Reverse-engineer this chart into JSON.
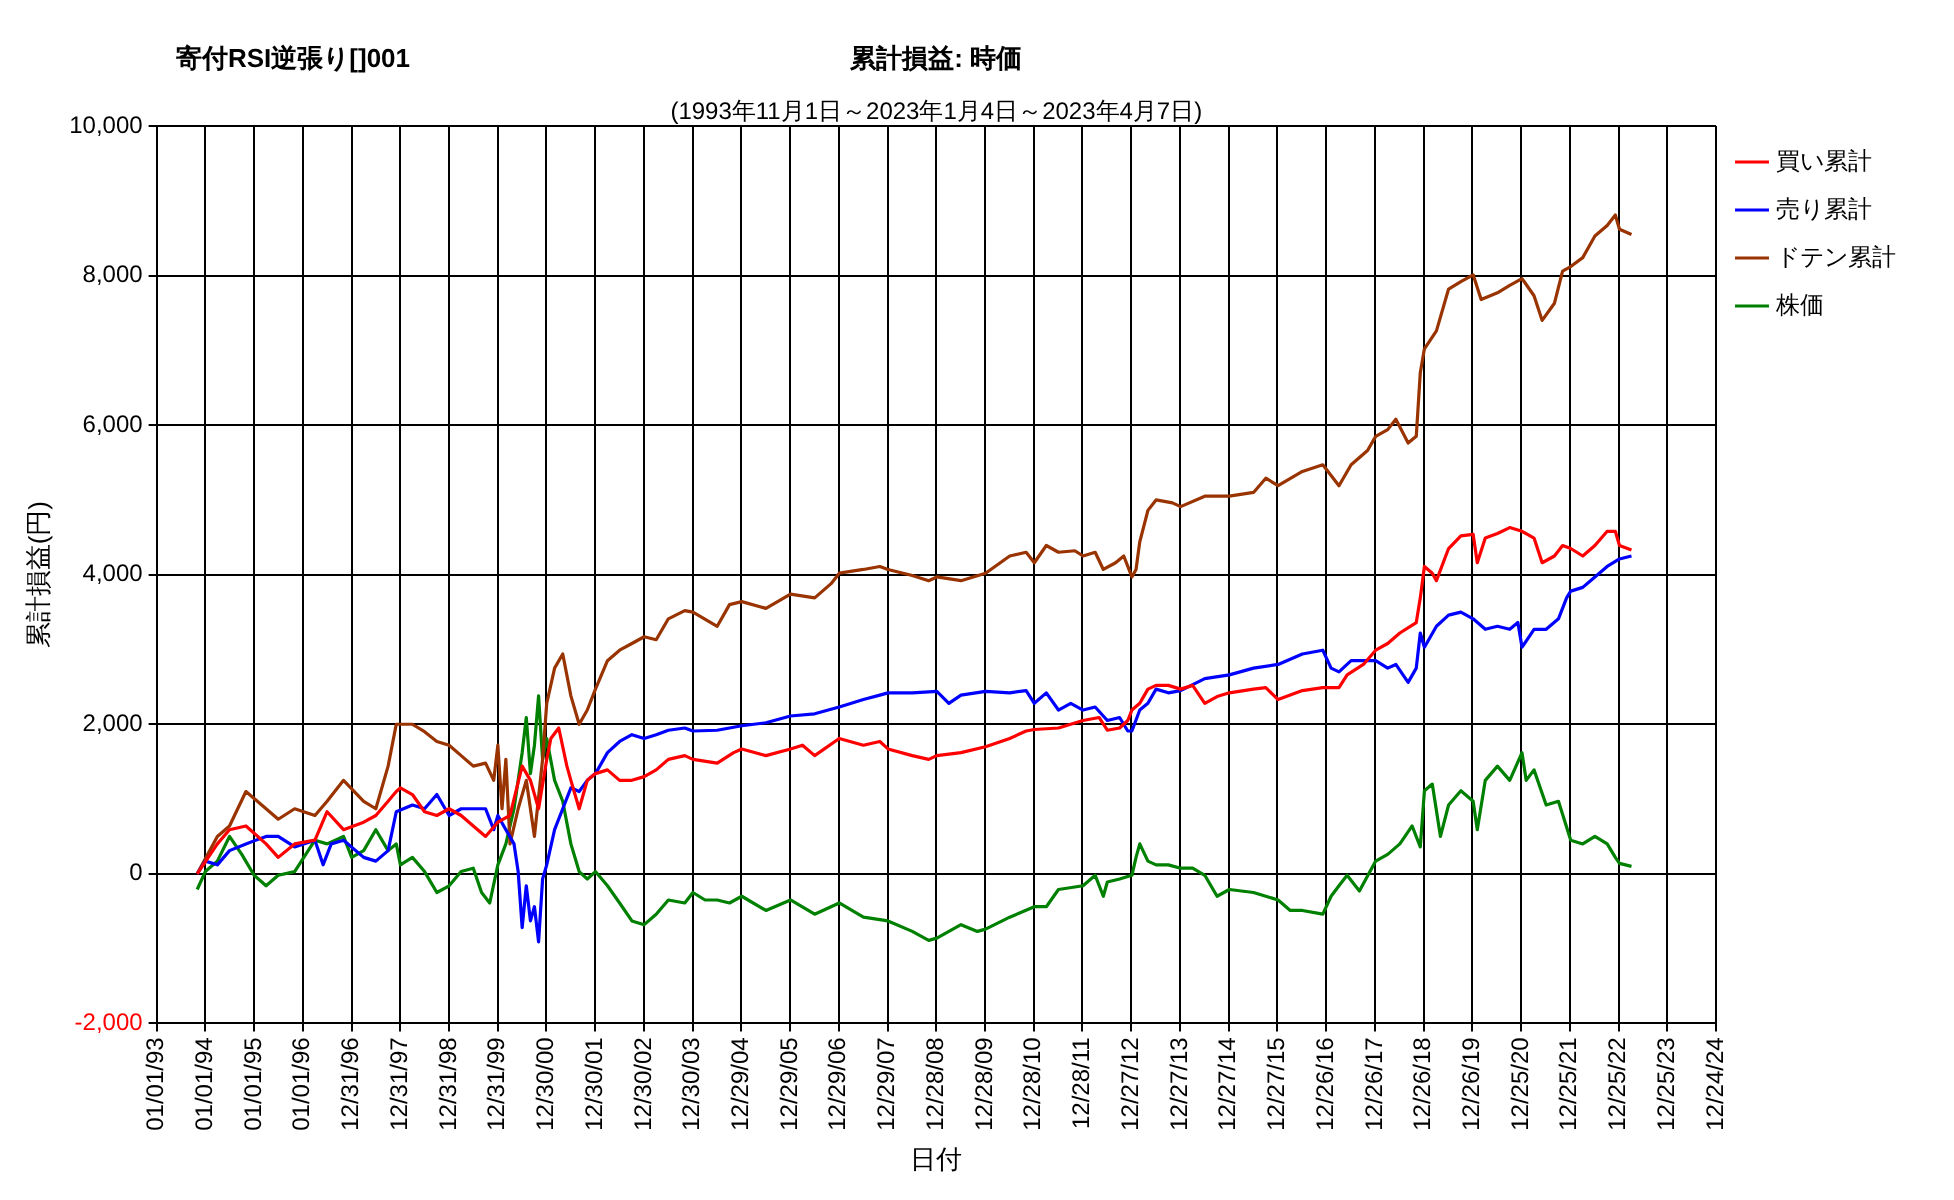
{
  "chart_data": {
    "type": "line",
    "title": "累計損益: 時価",
    "subtitle": "(1993年11月1日～2023年1月4日～2023年4月7日)",
    "annotations": [
      "寄付RSI逆張り[]001"
    ],
    "xlabel": "日付",
    "ylabel": "累計損益(円)",
    "xlim": [
      "1993-01-01",
      "2024-12-24"
    ],
    "xticks": [
      {
        "value": "1993-01-01",
        "label": "01/01/93"
      },
      {
        "value": "1994-01-01",
        "label": "01/01/94"
      },
      {
        "value": "1995-01-01",
        "label": "01/01/95"
      },
      {
        "value": "1996-01-01",
        "label": "01/01/96"
      },
      {
        "value": "1996-12-31",
        "label": "12/31/96"
      },
      {
        "value": "1997-12-31",
        "label": "12/31/97"
      },
      {
        "value": "1998-12-31",
        "label": "12/31/98"
      },
      {
        "value": "1999-12-31",
        "label": "12/31/99"
      },
      {
        "value": "2000-12-30",
        "label": "12/30/00"
      },
      {
        "value": "2001-12-30",
        "label": "12/30/01"
      },
      {
        "value": "2002-12-30",
        "label": "12/30/02"
      },
      {
        "value": "2003-12-30",
        "label": "12/30/03"
      },
      {
        "value": "2004-12-29",
        "label": "12/29/04"
      },
      {
        "value": "2005-12-29",
        "label": "12/29/05"
      },
      {
        "value": "2006-12-29",
        "label": "12/29/06"
      },
      {
        "value": "2007-12-29",
        "label": "12/29/07"
      },
      {
        "value": "2008-12-28",
        "label": "12/28/08"
      },
      {
        "value": "2009-12-28",
        "label": "12/28/09"
      },
      {
        "value": "2010-12-28",
        "label": "12/28/10"
      },
      {
        "value": "2011-12-28",
        "label": "12/28/11"
      },
      {
        "value": "2012-12-27",
        "label": "12/27/12"
      },
      {
        "value": "2013-12-27",
        "label": "12/27/13"
      },
      {
        "value": "2014-12-27",
        "label": "12/27/14"
      },
      {
        "value": "2015-12-27",
        "label": "12/27/15"
      },
      {
        "value": "2016-12-26",
        "label": "12/26/16"
      },
      {
        "value": "2017-12-26",
        "label": "12/26/17"
      },
      {
        "value": "2018-12-26",
        "label": "12/26/18"
      },
      {
        "value": "2019-12-26",
        "label": "12/26/19"
      },
      {
        "value": "2020-12-25",
        "label": "12/25/20"
      },
      {
        "value": "2021-12-25",
        "label": "12/25/21"
      },
      {
        "value": "2022-12-25",
        "label": "12/25/22"
      },
      {
        "value": "2023-12-25",
        "label": "12/25/23"
      },
      {
        "value": "2024-12-24",
        "label": "12/24/24"
      }
    ],
    "ylim": [
      -2000,
      10000
    ],
    "yticks": [
      {
        "value": -2000,
        "label": "-2,000"
      },
      0,
      {
        "value": 2000,
        "label": "2,000"
      },
      {
        "value": 4000,
        "label": "4,000"
      },
      {
        "value": 6000,
        "label": "6,000"
      },
      {
        "value": 8000,
        "label": "8,000"
      },
      {
        "value": 10000,
        "label": "10,000"
      }
    ],
    "grid": true,
    "legend": "right",
    "series": [
      {
        "name": "買い累計",
        "color": "#ff0000",
        "x": [
          "1993-11",
          "1994-04",
          "1994-07",
          "1994-11",
          "1995-04",
          "1995-07",
          "1995-11",
          "1996-04",
          "1996-07",
          "1996-11",
          "1997-04",
          "1997-07",
          "1997-10",
          "1997-12",
          "1998-01",
          "1998-04",
          "1998-07",
          "1998-10",
          "1999-01",
          "1999-04",
          "1999-07",
          "1999-10",
          "2000-01",
          "2000-04",
          "2000-07",
          "2000-09",
          "2000-11",
          "2001-01",
          "2001-02",
          "2001-04",
          "2001-06",
          "2001-07",
          "2001-09",
          "2001-11",
          "2002-01",
          "2002-04",
          "2002-07",
          "2002-10",
          "2003-01",
          "2003-04",
          "2003-07",
          "2003-11",
          "2004-01",
          "2004-07",
          "2004-11",
          "2005-01",
          "2005-07",
          "2006-01",
          "2006-04",
          "2006-07",
          "2007-01",
          "2007-07",
          "2007-11",
          "2008-01",
          "2008-07",
          "2008-11",
          "2009-01",
          "2009-07",
          "2010-01",
          "2010-07",
          "2010-11",
          "2011-01",
          "2011-07",
          "2012-01",
          "2012-05",
          "2012-07",
          "2012-10",
          "2012-12",
          "2013-01",
          "2013-03",
          "2013-05",
          "2013-07",
          "2013-10",
          "2014-01",
          "2014-04",
          "2014-07",
          "2014-10",
          "2015-01",
          "2015-07",
          "2015-10",
          "2016-01",
          "2016-07",
          "2016-12",
          "2017-04",
          "2017-06",
          "2017-10",
          "2018-01",
          "2018-04",
          "2018-07",
          "2018-11",
          "2018-12",
          "2019-01",
          "2019-03",
          "2019-04",
          "2019-07",
          "2019-10",
          "2020-01",
          "2020-02",
          "2020-04",
          "2020-07",
          "2020-10",
          "2021-01",
          "2021-04",
          "2021-06",
          "2021-09",
          "2021-11",
          "2022-01",
          "2022-04",
          "2022-07",
          "2022-10",
          "2022-12",
          "2023-01",
          "2023-04"
        ],
        "values": [
          0,
          400,
          590,
          640,
          400,
          220,
          400,
          450,
          830,
          590,
          690,
          780,
          970,
          1100,
          1150,
          1060,
          830,
          780,
          870,
          780,
          640,
          500,
          690,
          780,
          1440,
          1250,
          870,
          1530,
          1810,
          1950,
          1440,
          1250,
          870,
          1250,
          1340,
          1390,
          1250,
          1250,
          1300,
          1390,
          1530,
          1580,
          1530,
          1480,
          1620,
          1670,
          1580,
          1670,
          1720,
          1580,
          1810,
          1720,
          1770,
          1670,
          1580,
          1530,
          1580,
          1620,
          1700,
          1810,
          1910,
          1930,
          1950,
          2050,
          2090,
          1920,
          1950,
          2050,
          2190,
          2280,
          2470,
          2520,
          2520,
          2470,
          2520,
          2280,
          2370,
          2420,
          2470,
          2490,
          2330,
          2450,
          2490,
          2490,
          2660,
          2800,
          2990,
          3080,
          3220,
          3360,
          3690,
          4110,
          4020,
          3920,
          4350,
          4520,
          4540,
          4160,
          4490,
          4550,
          4630,
          4580,
          4490,
          4160,
          4250,
          4390,
          4350,
          4250,
          4390,
          4580,
          4580,
          4390,
          4330
        ]
      },
      {
        "name": "売り累計",
        "color": "#0000ff",
        "x": [
          "1993-11",
          "1994-01",
          "1994-04",
          "1994-07",
          "1994-11",
          "1995-04",
          "1995-07",
          "1995-11",
          "1996-04",
          "1996-06",
          "1996-08",
          "1996-11",
          "1997-04",
          "1997-07",
          "1997-10",
          "1997-12",
          "1998-04",
          "1998-07",
          "1998-10",
          "1999-01",
          "1999-04",
          "1999-07",
          "1999-10",
          "1999-12",
          "2000-01",
          "2000-03",
          "2000-05",
          "2000-06",
          "2000-07",
          "2000-08",
          "2000-09",
          "2000-10",
          "2000-11",
          "2000-12",
          "2001-01",
          "2001-03",
          "2001-05",
          "2001-07",
          "2001-09",
          "2001-11",
          "2002-01",
          "2002-04",
          "2002-07",
          "2002-10",
          "2003-01",
          "2003-04",
          "2003-07",
          "2003-11",
          "2004-01",
          "2004-07",
          "2005-01",
          "2005-07",
          "2006-01",
          "2006-07",
          "2007-01",
          "2007-07",
          "2007-11",
          "2008-01",
          "2008-07",
          "2009-01",
          "2009-04",
          "2009-07",
          "2010-01",
          "2010-07",
          "2010-11",
          "2011-01",
          "2011-04",
          "2011-07",
          "2011-10",
          "2012-01",
          "2012-04",
          "2012-07",
          "2012-10",
          "2012-12",
          "2013-01",
          "2013-03",
          "2013-05",
          "2013-07",
          "2013-10",
          "2014-01",
          "2014-07",
          "2015-01",
          "2015-07",
          "2016-01",
          "2016-07",
          "2016-12",
          "2017-02",
          "2017-04",
          "2017-07",
          "2017-10",
          "2018-01",
          "2018-04",
          "2018-06",
          "2018-09",
          "2018-11",
          "2018-12",
          "2019-01",
          "2019-04",
          "2019-07",
          "2019-10",
          "2020-01",
          "2020-04",
          "2020-07",
          "2020-10",
          "2020-12",
          "2021-01",
          "2021-04",
          "2021-07",
          "2021-10",
          "2021-12",
          "2022-01",
          "2022-04",
          "2022-07",
          "2022-10",
          "2023-01",
          "2023-04"
        ],
        "values": [
          0,
          170,
          120,
          310,
          400,
          500,
          500,
          360,
          450,
          120,
          400,
          450,
          220,
          170,
          310,
          830,
          920,
          870,
          1060,
          780,
          870,
          870,
          870,
          590,
          780,
          590,
          400,
          30,
          -720,
          -160,
          -630,
          -440,
          -910,
          -70,
          120,
          590,
          870,
          1150,
          1100,
          1250,
          1340,
          1620,
          1770,
          1860,
          1810,
          1860,
          1920,
          1950,
          1910,
          1920,
          1980,
          2020,
          2110,
          2140,
          2230,
          2330,
          2390,
          2420,
          2420,
          2440,
          2280,
          2390,
          2440,
          2420,
          2450,
          2280,
          2420,
          2190,
          2280,
          2190,
          2230,
          2050,
          2090,
          1910,
          1910,
          2190,
          2280,
          2470,
          2420,
          2450,
          2610,
          2660,
          2750,
          2800,
          2940,
          2990,
          2750,
          2700,
          2850,
          2850,
          2850,
          2750,
          2800,
          2560,
          2750,
          3220,
          3030,
          3310,
          3460,
          3500,
          3410,
          3270,
          3310,
          3270,
          3360,
          3030,
          3270,
          3270,
          3410,
          3690,
          3780,
          3830,
          3970,
          4110,
          4210,
          4250
        ]
      },
      {
        "name": "ドテン累計",
        "color": "#993300",
        "x": [
          "1993-11",
          "1994-04",
          "1994-07",
          "1994-11",
          "1995-04",
          "1995-07",
          "1995-11",
          "1996-04",
          "1996-07",
          "1996-11",
          "1997-04",
          "1997-07",
          "1997-10",
          "1997-12",
          "1998-04",
          "1998-07",
          "1998-10",
          "1999-01",
          "1999-04",
          "1999-07",
          "1999-10",
          "1999-12",
          "2000-01",
          "2000-02",
          "2000-03",
          "2000-04",
          "2000-06",
          "2000-08",
          "2000-10",
          "2000-12",
          "2001-01",
          "2001-03",
          "2001-05",
          "2001-07",
          "2001-09",
          "2001-11",
          "2002-01",
          "2002-04",
          "2002-07",
          "2002-10",
          "2003-01",
          "2003-04",
          "2003-07",
          "2003-11",
          "2004-01",
          "2004-07",
          "2004-10",
          "2005-01",
          "2005-07",
          "2006-01",
          "2006-07",
          "2006-11",
          "2007-01",
          "2007-07",
          "2007-11",
          "2008-01",
          "2008-07",
          "2008-11",
          "2009-01",
          "2009-07",
          "2010-01",
          "2010-07",
          "2010-11",
          "2011-01",
          "2011-04",
          "2011-07",
          "2011-11",
          "2012-01",
          "2012-04",
          "2012-06",
          "2012-09",
          "2012-11",
          "2013-01",
          "2013-02",
          "2013-03",
          "2013-05",
          "2013-07",
          "2013-11",
          "2014-01",
          "2014-07",
          "2015-01",
          "2015-07",
          "2015-10",
          "2016-01",
          "2016-07",
          "2016-12",
          "2017-04",
          "2017-07",
          "2017-11",
          "2018-01",
          "2018-04",
          "2018-06",
          "2018-09",
          "2018-11",
          "2018-12",
          "2019-01",
          "2019-04",
          "2019-07",
          "2019-10",
          "2020-01",
          "2020-03",
          "2020-07",
          "2020-10",
          "2021-01",
          "2021-04",
          "2021-06",
          "2021-09",
          "2021-11",
          "2022-01",
          "2022-04",
          "2022-07",
          "2022-10",
          "2022-12",
          "2023-01",
          "2023-04"
        ],
        "values": [
          0,
          500,
          640,
          1100,
          870,
          730,
          870,
          780,
          970,
          1250,
          970,
          870,
          1440,
          2000,
          2000,
          1900,
          1770,
          1720,
          1580,
          1440,
          1480,
          1250,
          1720,
          870,
          1530,
          400,
          870,
          1250,
          500,
          1530,
          2280,
          2750,
          2940,
          2380,
          2000,
          2190,
          2470,
          2850,
          2990,
          3080,
          3170,
          3130,
          3410,
          3520,
          3500,
          3310,
          3600,
          3640,
          3550,
          3740,
          3690,
          3880,
          4020,
          4070,
          4110,
          4070,
          3990,
          3920,
          3970,
          3920,
          4020,
          4250,
          4300,
          4160,
          4390,
          4300,
          4320,
          4250,
          4300,
          4070,
          4160,
          4250,
          3970,
          4070,
          4440,
          4860,
          5000,
          4960,
          4910,
          5050,
          5050,
          5100,
          5290,
          5190,
          5380,
          5470,
          5190,
          5470,
          5660,
          5850,
          5940,
          6080,
          5760,
          5850,
          6700,
          7020,
          7260,
          7820,
          7920,
          8010,
          7680,
          7770,
          7870,
          7960,
          7730,
          7400,
          7630,
          8060,
          8120,
          8240,
          8530,
          8670,
          8810,
          8620,
          8550
        ]
      },
      {
        "name": "株価",
        "color": "#008000",
        "x": [
          "1993-11",
          "1994-01",
          "1994-04",
          "1994-07",
          "1994-10",
          "1995-01",
          "1995-04",
          "1995-07",
          "1995-11",
          "1996-04",
          "1996-07",
          "1996-11",
          "1997-01",
          "1997-04",
          "1997-07",
          "1997-10",
          "1997-12",
          "1998-01",
          "1998-04",
          "1998-07",
          "1998-10",
          "1999-01",
          "1999-04",
          "1999-07",
          "1999-09",
          "1999-11",
          "2000-01",
          "2000-03",
          "2000-05",
          "2000-07",
          "2000-08",
          "2000-09",
          "2000-10",
          "2000-11",
          "2000-12",
          "2001-01",
          "2001-03",
          "2001-05",
          "2001-07",
          "2001-09",
          "2001-11",
          "2002-01",
          "2002-04",
          "2002-07",
          "2002-10",
          "2003-01",
          "2003-04",
          "2003-07",
          "2003-11",
          "2004-01",
          "2004-04",
          "2004-07",
          "2004-10",
          "2005-01",
          "2005-07",
          "2006-01",
          "2006-07",
          "2007-01",
          "2007-07",
          "2008-01",
          "2008-07",
          "2008-11",
          "2009-01",
          "2009-07",
          "2009-11",
          "2010-01",
          "2010-07",
          "2011-01",
          "2011-04",
          "2011-07",
          "2012-01",
          "2012-04",
          "2012-06",
          "2012-07",
          "2012-10",
          "2013-01",
          "2013-02",
          "2013-03",
          "2013-05",
          "2013-07",
          "2013-10",
          "2014-01",
          "2014-04",
          "2014-07",
          "2014-10",
          "2015-01",
          "2015-07",
          "2015-10",
          "2016-01",
          "2016-04",
          "2016-07",
          "2016-12",
          "2017-02",
          "2017-04",
          "2017-06",
          "2017-09",
          "2018-01",
          "2018-04",
          "2018-07",
          "2018-10",
          "2018-12",
          "2019-01",
          "2019-03",
          "2019-05",
          "2019-07",
          "2019-10",
          "2020-01",
          "2020-02",
          "2020-04",
          "2020-07",
          "2020-10",
          "2021-01",
          "2021-02",
          "2021-04",
          "2021-07",
          "2021-10",
          "2022-01",
          "2022-04",
          "2022-07",
          "2022-10",
          "2022-12",
          "2023-01",
          "2023-04"
        ],
        "values": [
          -210,
          30,
          170,
          500,
          260,
          -20,
          -160,
          -20,
          30,
          450,
          400,
          500,
          220,
          310,
          590,
          310,
          400,
          120,
          220,
          30,
          -250,
          -160,
          30,
          75,
          -250,
          -390,
          120,
          400,
          870,
          1620,
          2090,
          1340,
          1720,
          2380,
          1530,
          1810,
          1250,
          970,
          400,
          30,
          -70,
          30,
          -160,
          -390,
          -630,
          -680,
          -540,
          -350,
          -390,
          -250,
          -350,
          -350,
          -390,
          -300,
          -490,
          -350,
          -540,
          -390,
          -580,
          -630,
          -770,
          -890,
          -860,
          -680,
          -770,
          -740,
          -580,
          -440,
          -440,
          -210,
          -160,
          -20,
          -300,
          -110,
          -70,
          -20,
          220,
          400,
          170,
          120,
          120,
          75,
          75,
          -20,
          -300,
          -210,
          -250,
          -300,
          -350,
          -490,
          -490,
          -540,
          -300,
          -160,
          -20,
          -230,
          170,
          260,
          400,
          640,
          360,
          1110,
          1200,
          500,
          920,
          1110,
          970,
          590,
          1250,
          1440,
          1250,
          1620,
          1250,
          1390,
          920,
          970,
          450,
          400,
          500,
          400,
          220,
          140,
          100
        ]
      }
    ]
  }
}
